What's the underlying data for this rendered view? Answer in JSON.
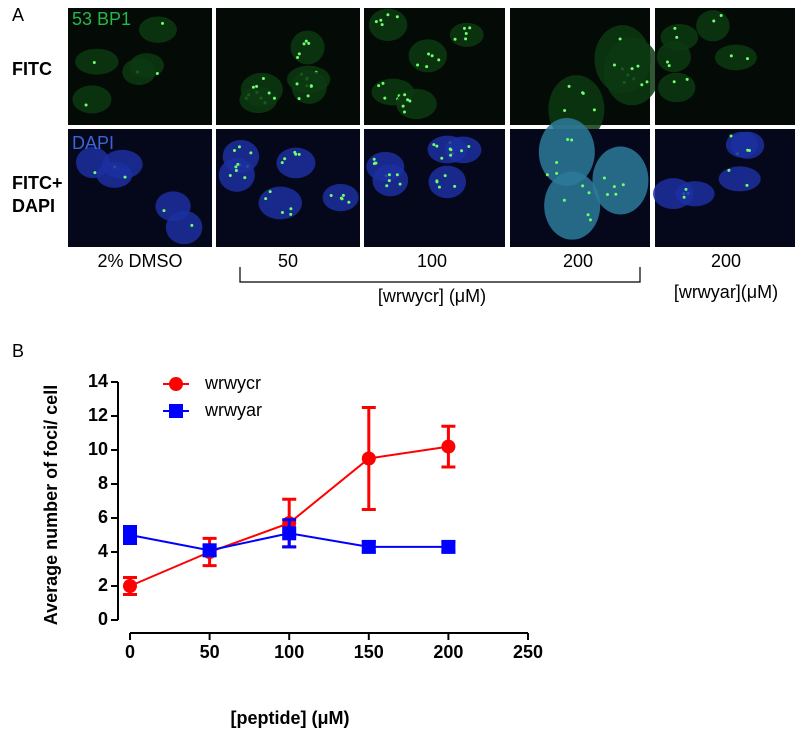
{
  "panel_a": {
    "label": "A",
    "row_labels": [
      [
        "FITC"
      ],
      [
        "FITC+",
        "DAPI"
      ]
    ],
    "channel_labels": [
      "53 BP1",
      "DAPI"
    ],
    "column_labels": [
      "2% DMSO",
      "50",
      "100",
      "200",
      "200"
    ],
    "group_labels": [
      "[wrwycr] (μM)",
      "[wrwyar](μM)"
    ]
  },
  "panel_b": {
    "label": "B"
  },
  "chart_data": {
    "type": "line",
    "xlabel": "[peptide] (μM)",
    "ylabel": "Average number of foci/ cell",
    "x": [
      0,
      50,
      100,
      150,
      200
    ],
    "series": [
      {
        "name": "wrwycr",
        "color": "#ff0000",
        "marker": "circle",
        "values": [
          2,
          4,
          5.7,
          9.5,
          10.2
        ],
        "errors": [
          0.5,
          0.8,
          1.4,
          3,
          1.2
        ]
      },
      {
        "name": "wrwyar",
        "color": "#0000ff",
        "marker": "square",
        "values": [
          5,
          4.1,
          5.1,
          4.3,
          4.3
        ],
        "errors": [
          0.5,
          0.3,
          0.8,
          0.3,
          0.3
        ]
      }
    ],
    "xlim": [
      0,
      250
    ],
    "xticks": [
      0,
      50,
      100,
      150,
      200,
      250
    ],
    "ylim": [
      0,
      14
    ],
    "yticks": [
      0,
      2,
      4,
      6,
      8,
      10,
      12,
      14
    ],
    "legend": "upper-left"
  }
}
